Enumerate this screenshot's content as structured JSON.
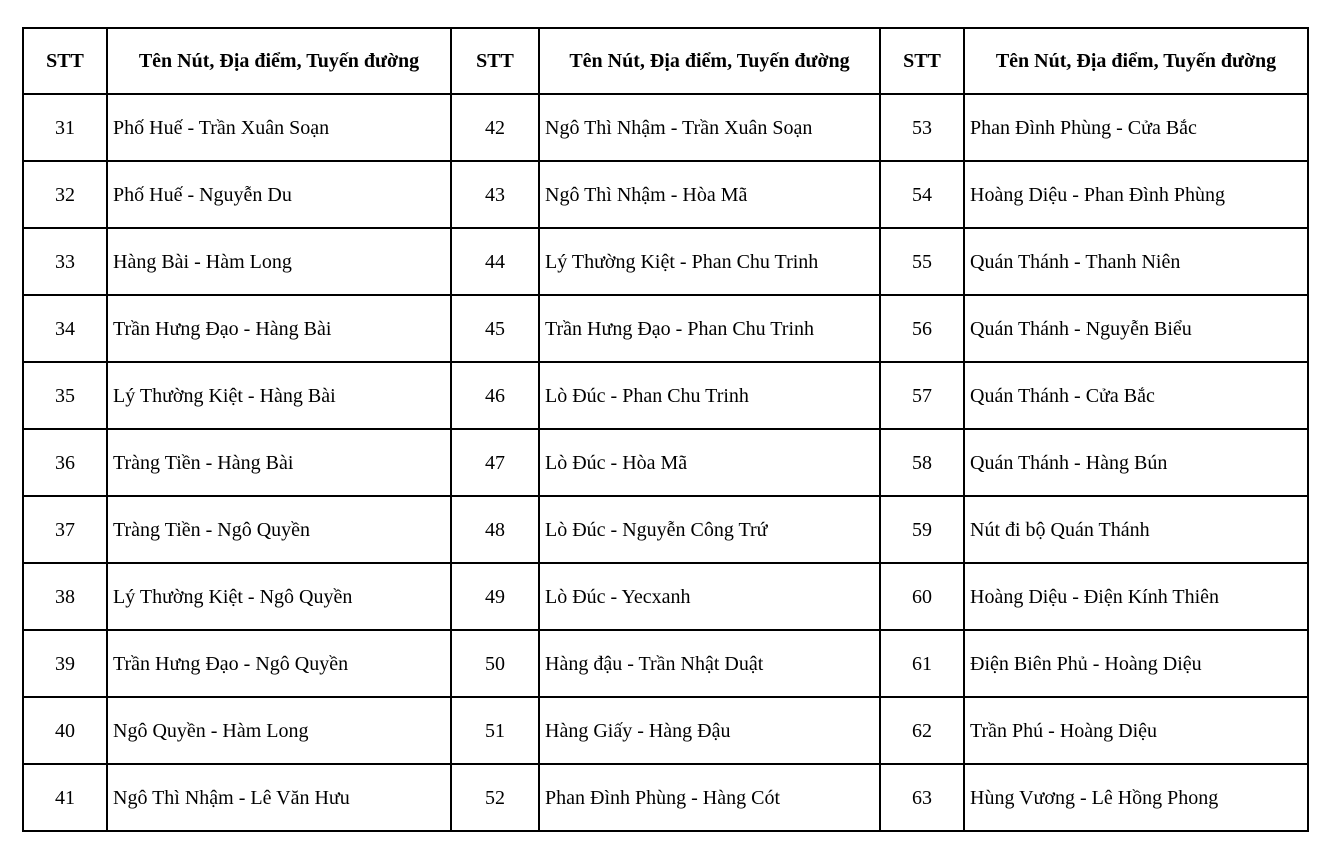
{
  "table": {
    "stt_header": "STT",
    "name_header": "Tên Nút, Địa điểm, Tuyến đường",
    "groups": [
      {
        "rows": [
          {
            "stt": "31",
            "name": "Phố Huế - Trần Xuân Soạn"
          },
          {
            "stt": "32",
            "name": "Phố Huế - Nguyễn Du"
          },
          {
            "stt": "33",
            "name": "Hàng Bài - Hàm Long"
          },
          {
            "stt": "34",
            "name": "Trần Hưng Đạo - Hàng Bài"
          },
          {
            "stt": "35",
            "name": "Lý Thường Kiệt - Hàng Bài"
          },
          {
            "stt": "36",
            "name": "Tràng Tiền - Hàng Bài"
          },
          {
            "stt": "37",
            "name": "Tràng Tiền - Ngô Quyền"
          },
          {
            "stt": "38",
            "name": "Lý Thường Kiệt - Ngô Quyền"
          },
          {
            "stt": "39",
            "name": "Trần Hưng Đạo - Ngô Quyền"
          },
          {
            "stt": "40",
            "name": "Ngô Quyền - Hàm Long"
          },
          {
            "stt": "41",
            "name": "Ngô Thì Nhậm - Lê Văn Hưu"
          }
        ]
      },
      {
        "rows": [
          {
            "stt": "42",
            "name": "Ngô Thì Nhậm - Trần Xuân Soạn"
          },
          {
            "stt": "43",
            "name": "Ngô Thì Nhậm - Hòa Mã"
          },
          {
            "stt": "44",
            "name": "Lý Thường Kiệt - Phan Chu Trinh"
          },
          {
            "stt": "45",
            "name": "Trần Hưng Đạo - Phan Chu Trinh"
          },
          {
            "stt": "46",
            "name": "Lò Đúc - Phan Chu Trinh"
          },
          {
            "stt": "47",
            "name": "Lò Đúc - Hòa Mã"
          },
          {
            "stt": "48",
            "name": "Lò Đúc - Nguyễn Công Trứ"
          },
          {
            "stt": "49",
            "name": "Lò Đúc - Yecxanh"
          },
          {
            "stt": "50",
            "name": "Hàng đậu - Trần Nhật Duật"
          },
          {
            "stt": "51",
            "name": "Hàng Giấy - Hàng Đậu"
          },
          {
            "stt": "52",
            "name": "Phan Đình Phùng - Hàng Cót"
          }
        ]
      },
      {
        "rows": [
          {
            "stt": "53",
            "name": "Phan Đình Phùng - Cửa Bắc"
          },
          {
            "stt": "54",
            "name": "Hoàng Diệu - Phan Đình Phùng"
          },
          {
            "stt": "55",
            "name": "Quán Thánh - Thanh Niên"
          },
          {
            "stt": "56",
            "name": "Quán Thánh - Nguyễn Biểu"
          },
          {
            "stt": "57",
            "name": "Quán Thánh - Cửa Bắc"
          },
          {
            "stt": "58",
            "name": "Quán Thánh - Hàng Bún"
          },
          {
            "stt": "59",
            "name": "Nút đi bộ Quán Thánh"
          },
          {
            "stt": "60",
            "name": "Hoàng Diệu - Điện Kính Thiên"
          },
          {
            "stt": "61",
            "name": "Điện Biên Phủ - Hoàng Diệu"
          },
          {
            "stt": "62",
            "name": "Trần Phú - Hoàng Diệu"
          },
          {
            "stt": "63",
            "name": "Hùng Vương - Lê Hồng Phong"
          }
        ]
      }
    ]
  }
}
